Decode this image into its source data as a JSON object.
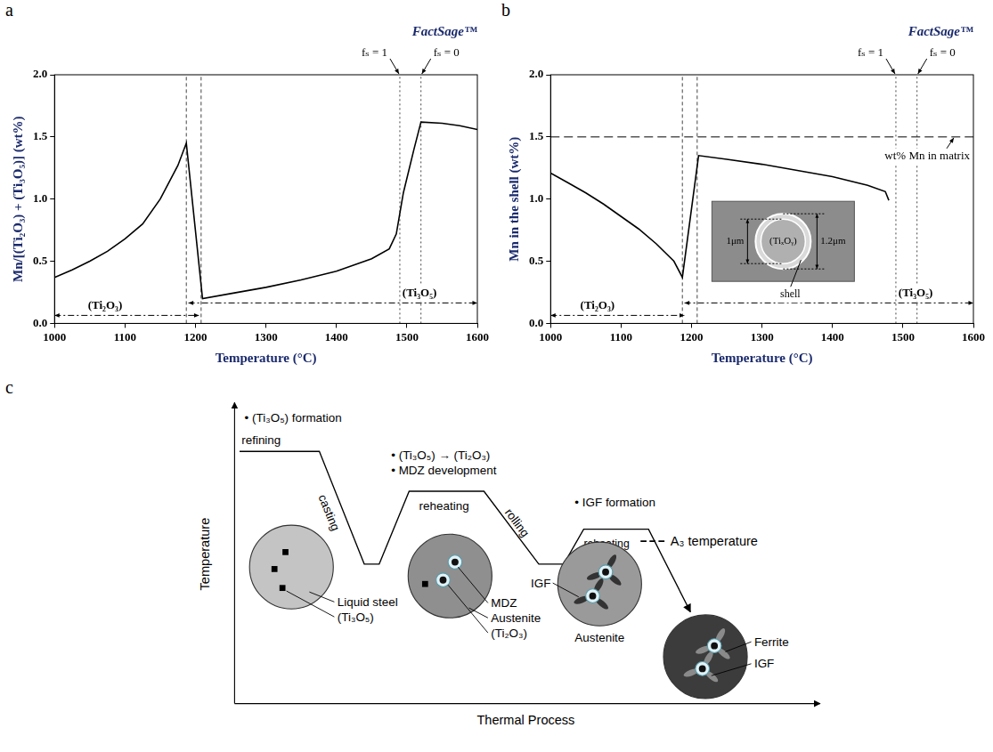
{
  "chart_data": [
    {
      "type": "line",
      "letter": "a",
      "logo": "FactSage™",
      "xlabel": "Temperature (°C)",
      "ylabel": "Mn/[(Ti₂O₃) + (Ti₃O₅)] (wt%)",
      "x": [
        1000,
        1025,
        1050,
        1075,
        1100,
        1125,
        1150,
        1175,
        1187,
        1210,
        1250,
        1300,
        1350,
        1400,
        1450,
        1475,
        1485,
        1495,
        1510,
        1520,
        1550,
        1575,
        1600
      ],
      "values": [
        0.37,
        0.43,
        0.5,
        0.58,
        0.68,
        0.8,
        1.0,
        1.27,
        1.45,
        0.2,
        0.24,
        0.29,
        0.35,
        0.42,
        0.52,
        0.6,
        0.72,
        1.05,
        1.4,
        1.62,
        1.61,
        1.59,
        1.56
      ],
      "color": "#000000",
      "xlim": [
        1000,
        1600
      ],
      "xticks": [
        1000,
        1100,
        1200,
        1300,
        1400,
        1500,
        1600
      ],
      "ylim": [
        0,
        2
      ],
      "yticks": [
        {
          "value": 0,
          "label": "0.0"
        },
        0.5,
        {
          "value": 1,
          "label": "1.0"
        },
        1.5,
        {
          "value": 2,
          "label": "2.0"
        }
      ],
      "grid": false,
      "vlines": [
        1187,
        1208
      ],
      "fs_lines": [
        {
          "value": 1490,
          "label": "fₛ = 1"
        },
        {
          "value": 1520,
          "label": "fₛ = 0"
        }
      ],
      "phases": [
        {
          "label": "(Ti₂O₃)",
          "from": 1000,
          "to": 1205
        },
        {
          "label": "(Ti₃O₅)",
          "from": 1190,
          "to": 1600
        }
      ]
    },
    {
      "type": "line",
      "letter": "b",
      "logo": "FactSage™",
      "xlabel": "Temperature (°C)",
      "ylabel": "Mn in the shell (wt%)",
      "x": [
        1000,
        1025,
        1050,
        1075,
        1100,
        1125,
        1150,
        1175,
        1187,
        1210,
        1250,
        1300,
        1350,
        1400,
        1450,
        1475,
        1480
      ],
      "values": [
        1.21,
        1.13,
        1.05,
        0.96,
        0.86,
        0.76,
        0.64,
        0.5,
        0.37,
        1.35,
        1.32,
        1.28,
        1.23,
        1.18,
        1.11,
        1.06,
        0.99
      ],
      "color": "#000000",
      "xlim": [
        1000,
        1600
      ],
      "xticks": [
        1000,
        1100,
        1200,
        1300,
        1400,
        1500,
        1600
      ],
      "ylim": [
        0,
        2
      ],
      "yticks": [
        {
          "value": 0,
          "label": "0.0"
        },
        0.5,
        {
          "value": 1,
          "label": "1.0"
        },
        1.5,
        {
          "value": 2,
          "label": "2.0"
        }
      ],
      "grid": false,
      "vlines": [
        1187,
        1208
      ],
      "fs_lines": [
        {
          "value": 1490,
          "label": "fₛ = 1"
        },
        {
          "value": 1520,
          "label": "fₛ = 0"
        }
      ],
      "hline": {
        "value": 1.5,
        "label": "wt% Mn in matrix"
      },
      "phases": [
        {
          "label": "(Ti₂O₃)",
          "from": 1000,
          "to": 1190
        },
        {
          "label": "(Ti₃O₅)",
          "from": 1190,
          "to": 1600
        }
      ],
      "inset": {
        "particle": "(TiₓOᵧ)",
        "inner": "1μm",
        "outer": "1.2μm",
        "shell": "shell"
      }
    }
  ],
  "diagram": {
    "letter": "c",
    "y_axis": "Temperature",
    "x_axis": "Thermal Process",
    "stages": [
      "refining",
      "casting",
      "reheating",
      "rolling",
      "reheating"
    ],
    "notes": [
      [
        "• (Ti₃O₅) formation"
      ],
      [
        "• (Ti₃O₅) → (Ti₂O₃)",
        "• MDZ development"
      ],
      [
        "• IGF formation"
      ]
    ],
    "a3": "A₃ temperature",
    "circles": [
      {
        "labels": [
          "Liquid steel",
          "(Ti₃O₅)"
        ]
      },
      {
        "labels": [
          "MDZ",
          "Austenite",
          "(Ti₂O₃)"
        ]
      },
      {
        "labels": [
          "Austenite",
          "IGF"
        ]
      },
      {
        "labels": [
          "Ferrite",
          "IGF"
        ]
      }
    ]
  }
}
